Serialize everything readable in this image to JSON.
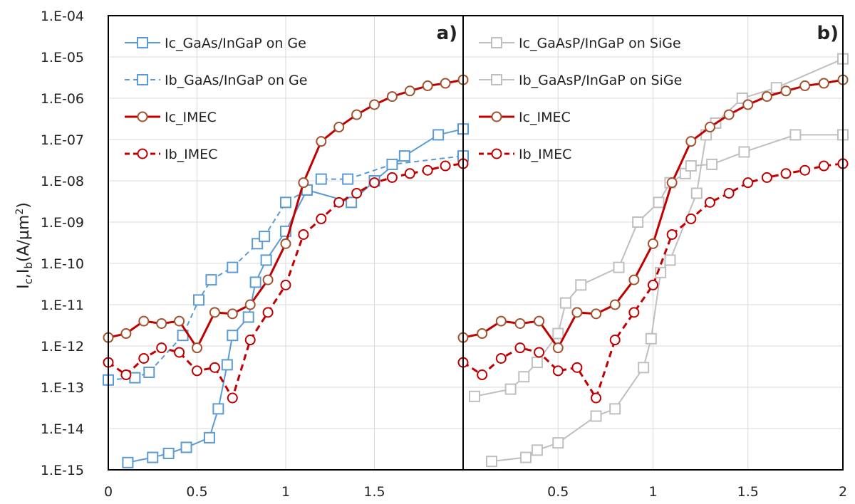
{
  "chart_data": [
    {
      "panel": "a)",
      "type": "line",
      "ylabel": "I_c,I_b(A/µm²)",
      "yscale": "log",
      "ylim": [
        1e-15,
        0.0001
      ],
      "xlim": [
        0,
        2
      ],
      "xticks": [
        "0",
        "0.5",
        "1",
        "1.5"
      ],
      "yticks": [
        "1.E-15",
        "1.E-14",
        "1.E-13",
        "1.E-12",
        "1.E-11",
        "1.E-10",
        "1.E-09",
        "1.E-08",
        "1.E-07",
        "1.E-06",
        "1.E-05",
        "1.E-04"
      ],
      "legend_position": "top-left",
      "series": [
        {
          "name": "Ic_GaAs/InGaP on Ge",
          "color": "#5b9bd5",
          "dash": "solid",
          "marker": "square",
          "x": [
            0.11,
            0.25,
            0.34,
            0.44,
            0.57,
            0.62,
            0.67,
            0.7,
            0.79,
            0.83,
            0.89,
            1.0,
            1.12,
            1.37,
            1.5,
            1.67,
            1.86,
            2.0
          ],
          "y": [
            1.5e-15,
            2e-15,
            2.5e-15,
            3.5e-15,
            6e-15,
            3e-14,
            3.5e-13,
            1.8e-12,
            5e-12,
            3.5e-11,
            1.2e-10,
            6e-10,
            6e-09,
            3e-09,
            1e-08,
            4e-08,
            1.3e-07,
            1.8e-07
          ]
        },
        {
          "name": "Ib_GaAs/InGaP on Ge",
          "color": "#5b9bd5",
          "dash": "dashed",
          "marker": "square",
          "x": [
            0.0,
            0.15,
            0.23,
            0.42,
            0.51,
            0.58,
            0.7,
            0.84,
            0.88,
            1.0,
            1.12,
            1.2,
            1.35,
            1.6,
            2.0
          ],
          "y": [
            1.5e-13,
            1.7e-13,
            2.3e-13,
            1.8e-12,
            1.3e-11,
            4e-11,
            8e-11,
            3e-10,
            4.5e-10,
            3e-09,
            6e-09,
            1.1e-08,
            1.1e-08,
            2.5e-08,
            4e-08
          ]
        },
        {
          "name": "Ic_IMEC",
          "color": "#c00000",
          "dash": "solid",
          "marker": "circle",
          "x": [
            0.0,
            0.1,
            0.2,
            0.3,
            0.4,
            0.5,
            0.6,
            0.7,
            0.8,
            0.9,
            1.0,
            1.1,
            1.2,
            1.3,
            1.4,
            1.5,
            1.6,
            1.7,
            1.8,
            1.9,
            2.0
          ],
          "y": [
            1.6e-12,
            2e-12,
            4e-12,
            3.5e-12,
            4e-12,
            9e-13,
            6.5e-12,
            6e-12,
            1e-11,
            4e-11,
            3e-10,
            9e-09,
            9e-08,
            2e-07,
            4e-07,
            7e-07,
            1.1e-06,
            1.5e-06,
            2e-06,
            2.3e-06,
            2.8e-06
          ]
        },
        {
          "name": "Ib_IMEC",
          "color": "#c00000",
          "dash": "dashed",
          "marker": "circle",
          "x": [
            0.0,
            0.1,
            0.2,
            0.3,
            0.4,
            0.5,
            0.6,
            0.7,
            0.8,
            0.9,
            1.0,
            1.1,
            1.2,
            1.3,
            1.4,
            1.5,
            1.6,
            1.7,
            1.8,
            1.9,
            2.0
          ],
          "y": [
            4e-13,
            2e-13,
            5e-13,
            9e-13,
            7e-13,
            2.5e-13,
            3e-13,
            5.5e-14,
            1.4e-12,
            6.5e-12,
            3e-11,
            5e-10,
            1.2e-09,
            3e-09,
            5e-09,
            9e-09,
            1.2e-08,
            1.5e-08,
            1.8e-08,
            2.3e-08,
            2.6e-08
          ]
        }
      ]
    },
    {
      "panel": "b)",
      "type": "line",
      "yscale": "log",
      "ylim": [
        1e-15,
        0.0001
      ],
      "xlim": [
        0,
        2
      ],
      "xticks": [
        "0.5",
        "1",
        "1.5",
        "2"
      ],
      "legend_position": "top-left",
      "series": [
        {
          "name": "Ic_GaAsP/InGaP on SiGe",
          "color": "#bfbfbf",
          "dash": "solid",
          "marker": "square",
          "x": [
            0.15,
            0.33,
            0.39,
            0.5,
            0.7,
            0.8,
            0.95,
            0.99,
            1.04,
            1.09,
            1.23,
            1.28,
            1.33,
            1.47,
            1.65,
            2.0
          ],
          "y": [
            1.6e-15,
            2e-15,
            3e-15,
            4.5e-15,
            2e-14,
            3e-14,
            3e-13,
            1.5e-12,
            6e-11,
            1.2e-10,
            5e-09,
            1.3e-07,
            2.5e-07,
            1e-06,
            1.8e-06,
            9e-06
          ]
        },
        {
          "name": "Ib_GaAsP/InGaP on SiGe",
          "color": "#bfbfbf",
          "dash": "solid",
          "marker": "square",
          "x": [
            0.06,
            0.25,
            0.32,
            0.39,
            0.5,
            0.54,
            0.62,
            0.82,
            0.92,
            1.03,
            1.09,
            1.17,
            1.2,
            1.31,
            1.48,
            1.75,
            2.0
          ],
          "y": [
            6e-14,
            9e-14,
            1.8e-13,
            4e-13,
            2e-12,
            1.1e-11,
            3e-11,
            8e-11,
            1e-09,
            3e-09,
            9e-09,
            1.5e-08,
            2.3e-08,
            2.5e-08,
            5e-08,
            1.3e-07,
            1.3e-07
          ]
        },
        {
          "name": "Ic_IMEC",
          "color": "#c00000",
          "dash": "solid",
          "marker": "circle",
          "x": [
            0.0,
            0.1,
            0.2,
            0.3,
            0.4,
            0.5,
            0.6,
            0.7,
            0.8,
            0.9,
            1.0,
            1.1,
            1.2,
            1.3,
            1.4,
            1.5,
            1.6,
            1.7,
            1.8,
            1.9,
            2.0
          ],
          "y": [
            1.6e-12,
            2e-12,
            4e-12,
            3.5e-12,
            4e-12,
            9e-13,
            6.5e-12,
            6e-12,
            1e-11,
            4e-11,
            3e-10,
            9e-09,
            9e-08,
            2e-07,
            4e-07,
            7e-07,
            1.1e-06,
            1.5e-06,
            2e-06,
            2.3e-06,
            2.8e-06
          ]
        },
        {
          "name": "Ib_IMEC",
          "color": "#c00000",
          "dash": "dashed",
          "marker": "circle",
          "x": [
            0.0,
            0.1,
            0.2,
            0.3,
            0.4,
            0.5,
            0.6,
            0.7,
            0.8,
            0.9,
            1.0,
            1.1,
            1.2,
            1.3,
            1.4,
            1.5,
            1.6,
            1.7,
            1.8,
            1.9,
            2.0
          ],
          "y": [
            4e-13,
            2e-13,
            5e-13,
            9e-13,
            7e-13,
            2.5e-13,
            3e-13,
            5.5e-14,
            1.4e-12,
            6.5e-12,
            3e-11,
            5e-10,
            1.2e-09,
            3e-09,
            5e-09,
            9e-09,
            1.2e-08,
            1.5e-08,
            1.8e-08,
            2.3e-08,
            2.6e-08
          ]
        }
      ]
    }
  ]
}
